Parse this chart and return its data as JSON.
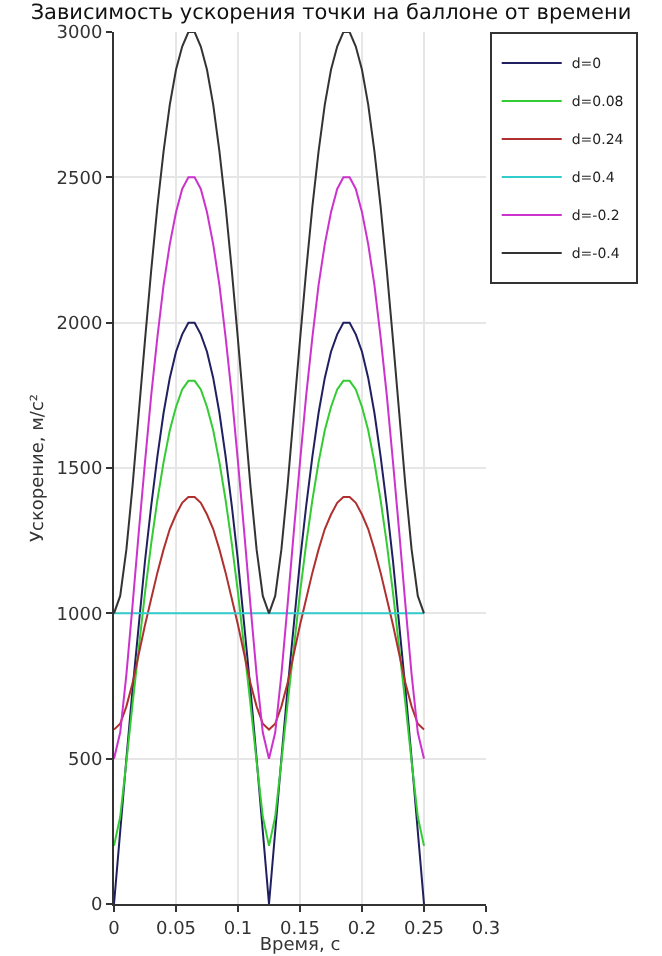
{
  "chart_data": {
    "type": "line",
    "title": "Зависимость ускорения точки на баллоне от времени",
    "xlabel": "Время, с",
    "ylabel": "Ускорение, м/с²",
    "x": [
      0,
      0.005,
      0.01,
      0.015,
      0.02,
      0.025,
      0.03,
      0.035,
      0.04,
      0.045,
      0.05,
      0.055,
      0.06,
      0.0625,
      0.065,
      0.07,
      0.075,
      0.08,
      0.085,
      0.09,
      0.095,
      0.1,
      0.105,
      0.11,
      0.115,
      0.12,
      0.125,
      0.13,
      0.135,
      0.14,
      0.145,
      0.15,
      0.155,
      0.16,
      0.165,
      0.17,
      0.175,
      0.18,
      0.185,
      0.1875,
      0.19,
      0.195,
      0.2,
      0.205,
      0.21,
      0.215,
      0.22,
      0.225,
      0.23,
      0.235,
      0.24,
      0.245,
      0.25
    ],
    "series": [
      {
        "name": "d=0",
        "color": "#202060",
        "values": [
          0,
          250,
          500,
          740,
          960,
          1180,
          1370,
          1540,
          1690,
          1810,
          1900,
          1960,
          2000,
          2000,
          2000,
          1960,
          1900,
          1810,
          1690,
          1540,
          1370,
          1180,
          960,
          740,
          500,
          250,
          0,
          250,
          500,
          740,
          960,
          1180,
          1370,
          1540,
          1690,
          1810,
          1900,
          1960,
          2000,
          2000,
          2000,
          1960,
          1900,
          1810,
          1690,
          1540,
          1370,
          1180,
          960,
          740,
          500,
          250,
          0
        ]
      },
      {
        "name": "d=0.08",
        "color": "#33cc33",
        "values": [
          200,
          300,
          490,
          690,
          880,
          1070,
          1240,
          1390,
          1520,
          1630,
          1710,
          1770,
          1800,
          1800,
          1800,
          1770,
          1710,
          1630,
          1520,
          1390,
          1240,
          1070,
          880,
          690,
          490,
          300,
          200,
          300,
          490,
          690,
          880,
          1070,
          1240,
          1390,
          1520,
          1630,
          1710,
          1770,
          1800,
          1800,
          1800,
          1770,
          1710,
          1630,
          1520,
          1390,
          1240,
          1070,
          880,
          690,
          490,
          300,
          200
        ]
      },
      {
        "name": "d=0.24",
        "color": "#b03030",
        "values": [
          600,
          620,
          680,
          760,
          860,
          960,
          1050,
          1140,
          1220,
          1290,
          1340,
          1380,
          1400,
          1400,
          1400,
          1380,
          1340,
          1290,
          1220,
          1140,
          1050,
          960,
          860,
          760,
          680,
          620,
          600,
          620,
          680,
          760,
          860,
          960,
          1050,
          1140,
          1220,
          1290,
          1340,
          1380,
          1400,
          1400,
          1400,
          1380,
          1340,
          1290,
          1220,
          1140,
          1050,
          960,
          860,
          760,
          680,
          620,
          600
        ]
      },
      {
        "name": "d=0.4",
        "color": "#33cccc",
        "values": [
          1000,
          1000,
          1000,
          1000,
          1000,
          1000,
          1000,
          1000,
          1000,
          1000,
          1000,
          1000,
          1000,
          1000,
          1000,
          1000,
          1000,
          1000,
          1000,
          1000,
          1000,
          1000,
          1000,
          1000,
          1000,
          1000,
          1000,
          1000,
          1000,
          1000,
          1000,
          1000,
          1000,
          1000,
          1000,
          1000,
          1000,
          1000,
          1000,
          1000,
          1000,
          1000,
          1000,
          1000,
          1000,
          1000,
          1000,
          1000,
          1000,
          1000,
          1000,
          1000,
          1000
        ]
      },
      {
        "name": "d=-0.2",
        "color": "#cc33cc",
        "values": [
          500,
          590,
          790,
          1030,
          1280,
          1520,
          1750,
          1950,
          2130,
          2270,
          2380,
          2460,
          2500,
          2500,
          2500,
          2460,
          2380,
          2270,
          2130,
          1950,
          1750,
          1520,
          1280,
          1030,
          790,
          590,
          500,
          590,
          790,
          1030,
          1280,
          1520,
          1750,
          1950,
          2130,
          2270,
          2380,
          2460,
          2500,
          2500,
          2500,
          2460,
          2380,
          2270,
          2130,
          1950,
          1750,
          1520,
          1280,
          1030,
          790,
          590,
          500
        ]
      },
      {
        "name": "d=-0.4",
        "color": "#333333",
        "values": [
          1000,
          1060,
          1220,
          1440,
          1690,
          1940,
          2180,
          2400,
          2590,
          2750,
          2870,
          2950,
          3000,
          3000,
          3000,
          2950,
          2870,
          2750,
          2590,
          2400,
          2180,
          1940,
          1690,
          1440,
          1220,
          1060,
          1000,
          1060,
          1220,
          1440,
          1690,
          1940,
          2180,
          2400,
          2590,
          2750,
          2870,
          2950,
          3000,
          3000,
          3000,
          2950,
          2870,
          2750,
          2590,
          2400,
          2180,
          1940,
          1690,
          1440,
          1220,
          1060,
          1000
        ]
      }
    ],
    "xlim": [
      0,
      0.3
    ],
    "xticks": [
      0,
      0.05,
      0.1,
      0.15,
      0.2,
      0.25,
      0.3
    ],
    "ylim": [
      0,
      3000
    ],
    "yticks": [
      0,
      500,
      1000,
      1500,
      2000,
      2500,
      3000
    ],
    "grid": true,
    "legend": "top right",
    "marker": "none",
    "line_style": "solid"
  }
}
